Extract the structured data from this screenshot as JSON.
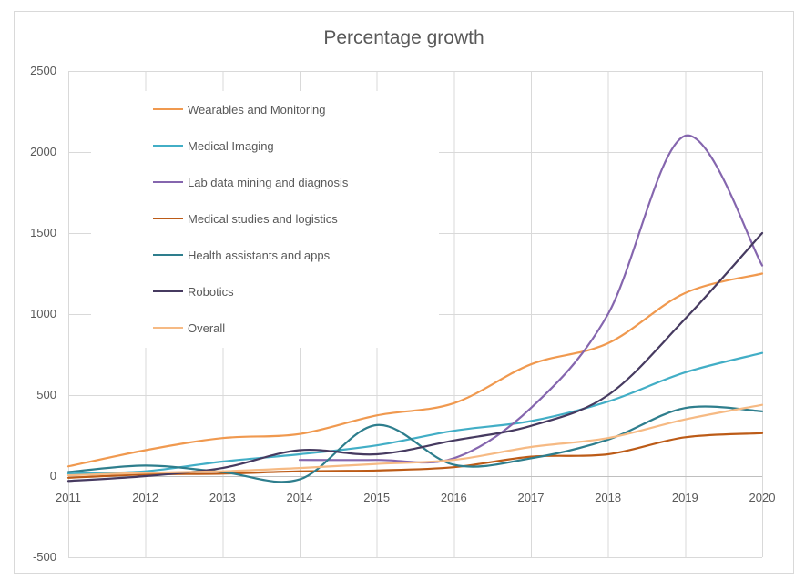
{
  "chart_data": {
    "type": "line",
    "title": "Percentage growth",
    "x": [
      2011,
      2012,
      2013,
      2014,
      2015,
      2016,
      2017,
      2018,
      2019,
      2020
    ],
    "series": [
      {
        "name": "Wearables and Monitoring",
        "color": "#F0994F",
        "values": [
          60,
          160,
          235,
          260,
          375,
          450,
          690,
          820,
          1130,
          1250
        ]
      },
      {
        "name": "Medical Imaging",
        "color": "#42AEC6",
        "values": [
          15,
          30,
          90,
          135,
          190,
          280,
          340,
          460,
          640,
          760
        ]
      },
      {
        "name": "Lab data mining and diagnosis",
        "color": "#8566AE",
        "values": [
          null,
          null,
          null,
          100,
          100,
          110,
          420,
          1000,
          2100,
          1300
        ]
      },
      {
        "name": "Medical studies and logistics",
        "color": "#BC5B17",
        "values": [
          -10,
          10,
          15,
          30,
          35,
          55,
          120,
          135,
          240,
          265
        ]
      },
      {
        "name": "Health assistants and apps",
        "color": "#2E7E8D",
        "values": [
          25,
          65,
          25,
          -20,
          315,
          70,
          110,
          225,
          420,
          400
        ]
      },
      {
        "name": "Robotics",
        "color": "#463A60",
        "values": [
          -30,
          0,
          50,
          160,
          135,
          220,
          310,
          500,
          970,
          1500
        ]
      },
      {
        "name": "Overall",
        "color": "#F6BA84",
        "values": [
          5,
          20,
          30,
          50,
          75,
          100,
          180,
          235,
          350,
          440
        ]
      }
    ],
    "ylim": [
      -500,
      2500
    ],
    "yticks": [
      2500,
      2000,
      1500,
      1000,
      500,
      0,
      -500
    ],
    "grid": true,
    "smooth": true,
    "legend_position": "inside-top-left"
  },
  "colors": {
    "grid": "#D9D9D9",
    "zero_axis": "#BFBFBF",
    "text": "#595959",
    "frame_border": "#D9D9D9",
    "background": "#FFFFFF"
  }
}
